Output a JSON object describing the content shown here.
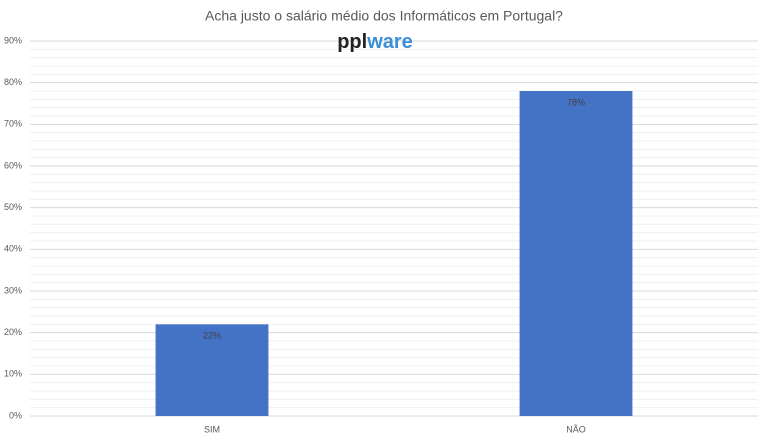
{
  "chart_data": {
    "type": "bar",
    "title": "Acha justo o salário médio dos Informáticos em Portugal?",
    "logo": [
      "ppl",
      "ware"
    ],
    "categories": [
      "SIM",
      "NÃO"
    ],
    "values": [
      22,
      78
    ],
    "value_labels": [
      "22%",
      "78%"
    ],
    "color": "#4472c4",
    "ylim": [
      0,
      90
    ],
    "yticks": [
      {
        "value": 0,
        "label": "0%"
      },
      {
        "value": 10,
        "label": "10%"
      },
      {
        "value": 20,
        "label": "20%"
      },
      {
        "value": 30,
        "label": "30%"
      },
      {
        "value": 40,
        "label": "40%"
      },
      {
        "value": 50,
        "label": "50%"
      },
      {
        "value": 60,
        "label": "60%"
      },
      {
        "value": 70,
        "label": "70%"
      },
      {
        "value": 80,
        "label": "80%"
      },
      {
        "value": 90,
        "label": "90%"
      }
    ],
    "grid": true,
    "minor_grid": true
  }
}
